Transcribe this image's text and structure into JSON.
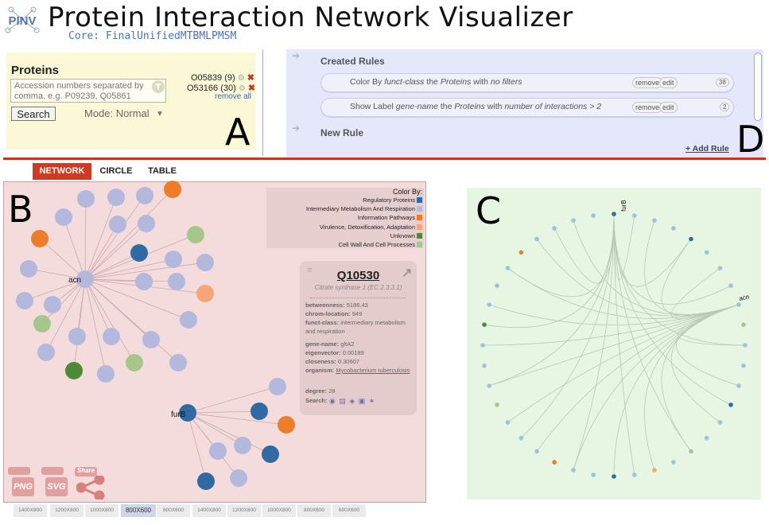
{
  "header": {
    "logo_text": "PINV",
    "title": "Protein Interaction Network Visualizer",
    "core_label": "Core: FinalUnifiedMTBMLPMSM"
  },
  "panel_a": {
    "letter": "A",
    "heading": "Proteins",
    "input_placeholder": "Accession numbers separated by comma. e.g. P09239, Q05861",
    "search_label": "Search",
    "mode_label": "Mode: Normal",
    "selected_proteins": [
      {
        "text": "O05839 (9)"
      },
      {
        "text": "O53166 (30)"
      }
    ],
    "remove_all": "remove all"
  },
  "panel_d": {
    "letter": "D",
    "created_rules_title": "Created Rules",
    "rules": [
      {
        "prefix": "Color By ",
        "attr": "funct-class",
        "mid": " the ",
        "target": "Proteins",
        "with": " with ",
        "filter": "no filters",
        "remove": "remove",
        "edit": "edit",
        "count": "38"
      },
      {
        "prefix": "Show Label ",
        "attr": "gene-name",
        "mid": " the ",
        "target": "Proteins",
        "with": " with ",
        "filter": "number of interactions > 2",
        "remove": "remove",
        "edit": "edit",
        "count": "2"
      }
    ],
    "new_rule_title": "New Rule",
    "add_rule": "+ Add Rule"
  },
  "tabs": [
    "NETWORK",
    "CIRCLE",
    "TABLE"
  ],
  "panel_b": {
    "letter": "B",
    "legend": {
      "title": "Color By:",
      "items": [
        {
          "label": "Regulatory Proteins",
          "color": "#2f6aa3"
        },
        {
          "label": "Intermediary Metabolism And Respiration",
          "color": "#b3b8dc"
        },
        {
          "label": "Information Pathways",
          "color": "#ee7d2a"
        },
        {
          "label": "Virulence, Detoxification, Adaptation",
          "color": "#f5a578"
        },
        {
          "label": "Unknown",
          "color": "#4e8a36"
        },
        {
          "label": "Cell Wall And Cell Processes",
          "color": "#a7c68c"
        }
      ]
    },
    "node_labels": {
      "acn": "acn",
      "furB": "furB"
    },
    "info": {
      "accession": "Q10530",
      "name": "Citrate synthase 1 (EC 2.3.3.1)",
      "fields": [
        {
          "k": "betweenness:",
          "v": "5186.43"
        },
        {
          "k": "chrom-location:",
          "v": "949"
        },
        {
          "k": "funct-class:",
          "v": "intermediary metabolism and respiration"
        },
        {
          "k": "gene-name:",
          "v": "gltA2"
        },
        {
          "k": "eigenvector:",
          "v": "0.00189"
        },
        {
          "k": "closeness:",
          "v": "0.30607"
        },
        {
          "k": "organism:",
          "v": "Mycobacterium tuberculosis"
        },
        {
          "k": "degree:",
          "v": "28"
        },
        {
          "k": "Search:",
          "v": ""
        }
      ]
    },
    "exports": [
      "PNG",
      "SVG",
      "Share"
    ],
    "sizes": [
      "1400X800",
      "1200X800",
      "1000X800",
      "800X600",
      "600X600",
      "1400X800",
      "1200X800",
      "1000X800",
      "800X600",
      "600X600"
    ],
    "active_size": "800X600"
  },
  "panel_c": {
    "letter": "C",
    "node_labels": {
      "furB": "furB",
      "acn": "acn"
    }
  },
  "colors": {
    "regulatory": "#2f6aa3",
    "metabolism": "#b3b8dc",
    "information": "#ee7d2a",
    "virulence": "#f5a578",
    "unknown": "#4e8a36",
    "cellwall": "#a7c68c",
    "accent_red": "#c8341e"
  }
}
